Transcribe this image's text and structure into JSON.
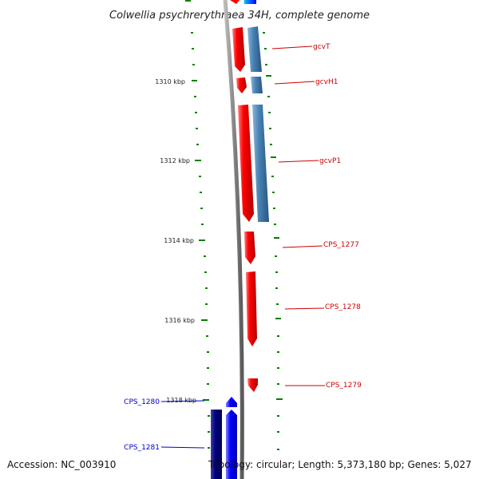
{
  "title": "Colwellia psychrerythraea 34H, complete genome",
  "footer": {
    "accession": "Accession: NC_003910",
    "topology": "Topology: circular; Length: 5,373,180 bp; Genes: 5,027"
  },
  "colors": {
    "forward_strand": "#ff0000",
    "reverse_strand": "#4682b4",
    "blue_gene": "#0000ff",
    "navy_gene": "#000080",
    "tick": "#008000",
    "backbone": "#888888"
  },
  "scale": {
    "unit": "kbp",
    "labels": [
      "1310 kbp",
      "1312 kbp",
      "1314 kbp",
      "1316 kbp",
      "1318 kbp"
    ]
  },
  "genes": [
    {
      "name": "gcvT",
      "color": "#cc0000"
    },
    {
      "name": "gcvH1",
      "color": "#cc0000"
    },
    {
      "name": "gcvP1",
      "color": "#cc0000"
    },
    {
      "name": "CPS_1277",
      "color": "#cc0000"
    },
    {
      "name": "CPS_1278",
      "color": "#cc0000"
    },
    {
      "name": "CPS_1279",
      "color": "#cc0000"
    },
    {
      "name": "CPS_1280",
      "color": "#0000cc"
    },
    {
      "name": "CPS_1281",
      "color": "#0000cc"
    }
  ]
}
